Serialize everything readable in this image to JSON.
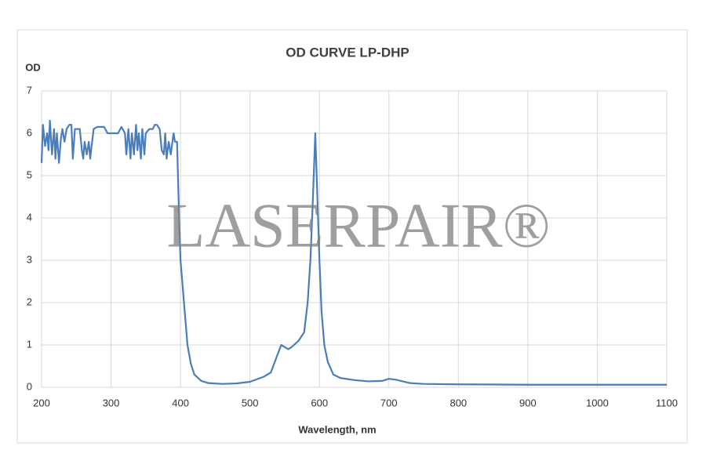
{
  "chart_data": {
    "type": "line",
    "title": "OD CURVE  LP-DHP",
    "y_label": "OD",
    "x_label": "Wavelength, nm",
    "watermark": "LASERPAIR®",
    "xlim": [
      200,
      1100
    ],
    "xticks": [
      200,
      300,
      400,
      500,
      600,
      700,
      800,
      900,
      1000,
      1100
    ],
    "ylim": [
      0,
      7
    ],
    "yticks": [
      0,
      1,
      2,
      3,
      4,
      5,
      6,
      7
    ],
    "grid": true,
    "x": [
      200,
      202,
      205,
      208,
      210,
      212,
      215,
      218,
      220,
      222,
      225,
      228,
      230,
      233,
      236,
      240,
      243,
      245,
      248,
      252,
      255,
      258,
      260,
      262,
      265,
      268,
      270,
      272,
      275,
      280,
      290,
      295,
      310,
      315,
      320,
      322,
      325,
      328,
      330,
      333,
      336,
      338,
      340,
      343,
      345,
      348,
      350,
      355,
      360,
      363,
      366,
      370,
      373,
      376,
      378,
      380,
      383,
      386,
      390,
      392,
      395,
      398,
      400,
      405,
      410,
      415,
      420,
      430,
      440,
      460,
      480,
      500,
      520,
      530,
      538,
      545,
      550,
      555,
      560,
      570,
      578,
      583,
      587,
      590,
      594,
      597,
      600,
      603,
      607,
      612,
      620,
      630,
      650,
      670,
      690,
      700,
      710,
      730,
      750,
      800,
      900,
      1000,
      1100
    ],
    "series": [
      {
        "name": "OD",
        "color": "#4a7ebb",
        "values": [
          5.3,
          6.2,
          5.7,
          6.0,
          5.6,
          6.3,
          5.5,
          6.1,
          5.4,
          6.0,
          5.3,
          5.9,
          6.1,
          5.8,
          6.1,
          6.2,
          6.2,
          5.4,
          6.1,
          6.1,
          6.1,
          5.6,
          5.4,
          5.8,
          5.5,
          5.8,
          5.4,
          5.7,
          6.1,
          6.15,
          6.15,
          6.0,
          6.0,
          6.15,
          6.0,
          5.5,
          6.1,
          5.4,
          6.0,
          5.5,
          6.2,
          5.6,
          6.0,
          5.4,
          6.1,
          5.5,
          6.0,
          6.1,
          6.1,
          6.2,
          6.2,
          6.1,
          5.6,
          5.5,
          6.0,
          5.4,
          5.8,
          5.5,
          6.0,
          5.8,
          5.8,
          4.0,
          3.0,
          2.0,
          1.0,
          0.55,
          0.3,
          0.15,
          0.1,
          0.08,
          0.09,
          0.13,
          0.25,
          0.35,
          0.7,
          1.0,
          0.95,
          0.9,
          0.95,
          1.1,
          1.3,
          2.0,
          3.0,
          4.2,
          6.0,
          4.5,
          3.0,
          1.8,
          1.0,
          0.6,
          0.3,
          0.22,
          0.17,
          0.14,
          0.15,
          0.2,
          0.18,
          0.1,
          0.08,
          0.07,
          0.06,
          0.06,
          0.06
        ]
      }
    ]
  }
}
